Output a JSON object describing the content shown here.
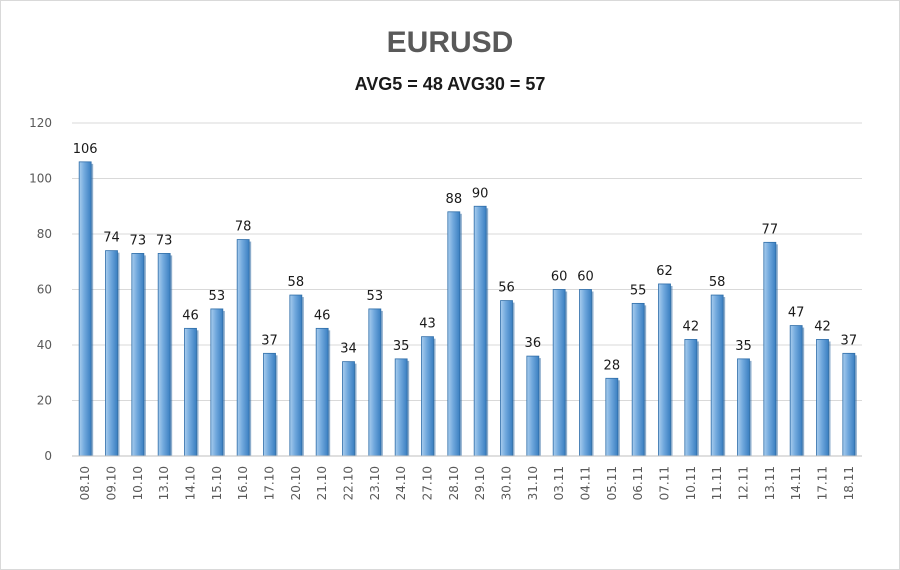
{
  "chart_data": {
    "type": "bar",
    "title": "EURUSD",
    "subtitle": "AVG5 = 48 AVG30 = 57",
    "categories": [
      "08.10",
      "09.10",
      "10.10",
      "13.10",
      "14.10",
      "15.10",
      "16.10",
      "17.10",
      "20.10",
      "21.10",
      "22.10",
      "23.10",
      "24.10",
      "27.10",
      "28.10",
      "29.10",
      "30.10",
      "31.10",
      "03.11",
      "04.11",
      "05.11",
      "06.11",
      "07.11",
      "10.11",
      "11.11",
      "12.11",
      "13.11",
      "14.11",
      "17.11",
      "18.11"
    ],
    "values": [
      106,
      74,
      73,
      73,
      46,
      53,
      78,
      37,
      58,
      46,
      34,
      53,
      35,
      43,
      88,
      90,
      56,
      36,
      60,
      60,
      28,
      55,
      62,
      42,
      58,
      35,
      77,
      47,
      42,
      37
    ],
    "ylim": [
      0,
      120
    ],
    "yticks": [
      0,
      20,
      40,
      60,
      80,
      100,
      120
    ],
    "grid": true,
    "legend": "none",
    "colors": {
      "bar": "#5b9bd5",
      "bar_light": "#9dc3e6",
      "bar_dark": "#2e75b6",
      "grid": "#d9d9d9"
    }
  }
}
